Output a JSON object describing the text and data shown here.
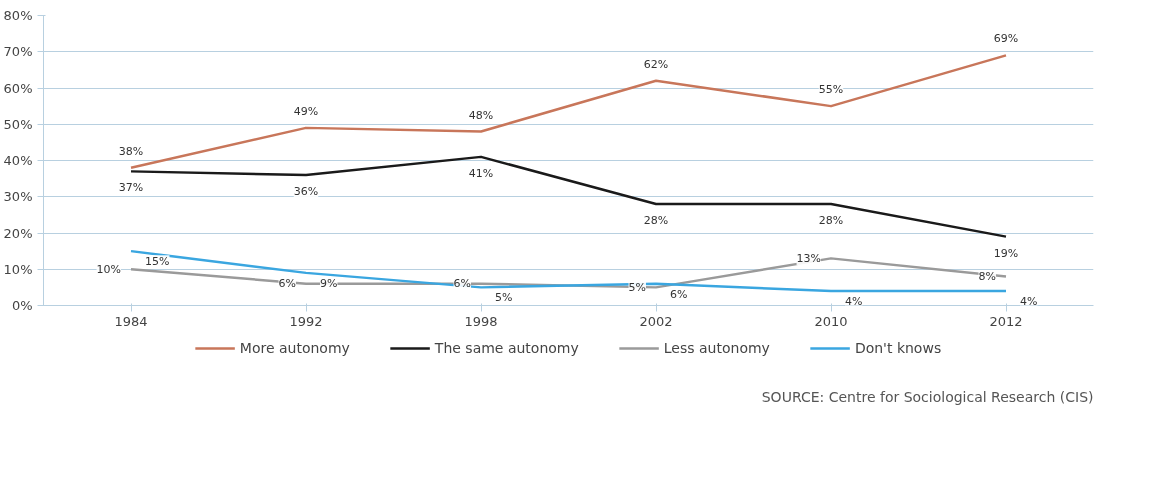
{
  "chart_data": {
    "type": "line",
    "categories": [
      "1984",
      "1992",
      "1998",
      "2002",
      "2010",
      "2012"
    ],
    "ylim": [
      0,
      80
    ],
    "yticks": [
      {
        "value": 0,
        "label": "0%"
      },
      {
        "value": 10,
        "label": "10%"
      },
      {
        "value": 20,
        "label": "20%"
      },
      {
        "value": 30,
        "label": "30%"
      },
      {
        "value": 40,
        "label": "40%"
      },
      {
        "value": 50,
        "label": "50%"
      },
      {
        "value": 60,
        "label": "60%"
      },
      {
        "value": 70,
        "label": "70%"
      },
      {
        "value": 80,
        "label": "80%"
      }
    ],
    "grid": "y",
    "legend": "bottom",
    "line_style": "solid",
    "annotations": [
      "SOURCE: Centre for Sociological Research (CIS)"
    ],
    "series": [
      {
        "name": "More autonomy",
        "color": "#c8765a",
        "values": [
          38,
          49,
          48,
          62,
          55,
          69
        ],
        "value_labels": [
          "38%",
          "49%",
          "48%",
          "62%",
          "55%",
          "69%"
        ]
      },
      {
        "name": "The same autonomy",
        "color": "#1a1a1a",
        "values": [
          37,
          36,
          41,
          28,
          28,
          19
        ],
        "value_labels": [
          "37%",
          "36%",
          "41%",
          "28%",
          "28%",
          "19%"
        ]
      },
      {
        "name": "Less autonomy",
        "color": "#9a9a9a",
        "values": [
          10,
          6,
          6,
          5,
          13,
          8
        ],
        "value_labels": [
          "10%",
          "6%",
          "6%",
          "5%",
          "13%",
          "8%"
        ]
      },
      {
        "name": "Don't knows",
        "color": "#3aa6e0",
        "values": [
          15,
          9,
          5,
          6,
          4,
          4
        ],
        "value_labels": [
          "15%",
          "9%",
          "5%",
          "6%",
          "4%",
          "4%"
        ]
      }
    ]
  }
}
